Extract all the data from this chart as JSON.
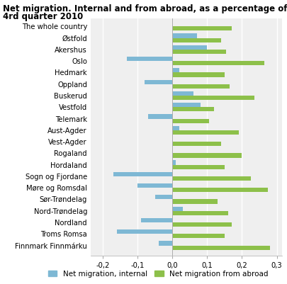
{
  "title_line1": "Net migration. Internal and from abroad, as a percentage of population",
  "title_line2": "4rd quarter 2010",
  "categories": [
    "The whole country",
    "Østfold",
    "Akershus",
    "Oslo",
    "Hedmark",
    "Oppland",
    "Buskerud",
    "Vestfold",
    "Telemark",
    "Aust-Agder",
    "Vest-Agder",
    "Rogaland",
    "Hordaland",
    "Sogn og Fjordane",
    "Møre og Romsdal",
    "Sør-Trøndelag",
    "Nord-Trøndelag",
    "Nordland",
    "Troms Romsa",
    "Finnmark Finnmárku"
  ],
  "internal": [
    0.0,
    0.07,
    0.1,
    -0.13,
    0.02,
    -0.08,
    0.06,
    0.08,
    -0.07,
    0.02,
    0.0,
    0.0,
    0.01,
    -0.17,
    -0.1,
    -0.05,
    0.03,
    -0.09,
    -0.16,
    -0.04
  ],
  "abroad": [
    0.17,
    0.14,
    0.155,
    0.265,
    0.15,
    0.165,
    0.235,
    0.12,
    0.105,
    0.19,
    0.14,
    0.2,
    0.15,
    0.225,
    0.275,
    0.13,
    0.16,
    0.17,
    0.15,
    0.28
  ],
  "color_internal": "#7EB8D4",
  "color_abroad": "#8DC04A",
  "xlim": [
    -0.235,
    0.315
  ],
  "xticks": [
    -0.2,
    -0.1,
    0.0,
    0.1,
    0.2,
    0.3
  ],
  "xticklabels": [
    "-0,2",
    "-0,1",
    "0,0",
    "0,1",
    "0,2",
    "0,3"
  ],
  "legend_internal": "Net migration, internal",
  "legend_abroad": "Net migration from abroad",
  "title_fontsize": 8.5,
  "tick_fontsize": 7.2,
  "bar_height": 0.38
}
